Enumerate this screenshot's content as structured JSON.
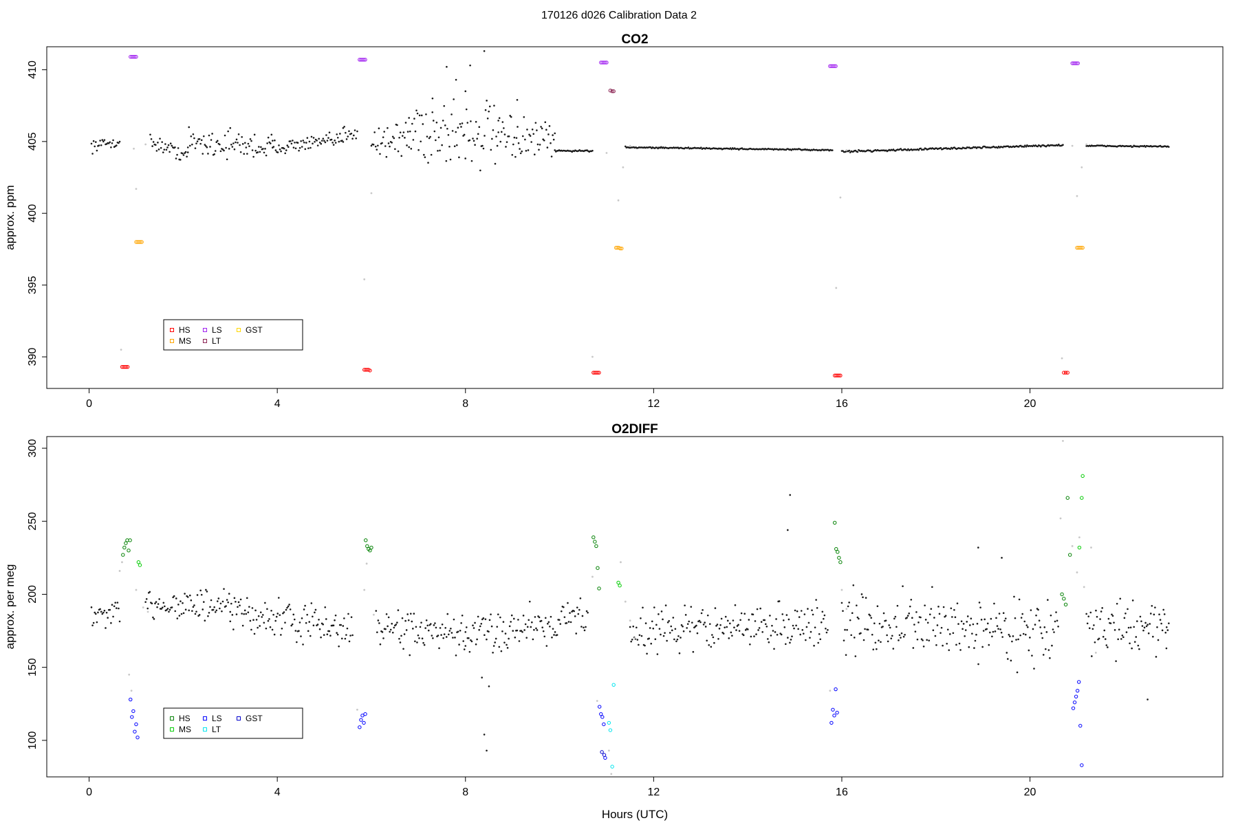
{
  "page_title": "170126   d026   Calibration Data 2",
  "colors": {
    "background_points": "#1a1a1a",
    "flagged_points": "#c8c8c8",
    "HS_co2": "#ff0000",
    "MS_co2": "#ffa500",
    "LS_co2": "#a020f0",
    "LT_co2": "#8b2252",
    "GST_co2": "#ffd700",
    "HS_o2": "#008000",
    "MS_o2": "#00cc00",
    "LS_o2": "#0000ff",
    "LT_o2": "#00e5ee",
    "GST_o2": "#0000cd"
  },
  "chart_data": [
    {
      "type": "scatter",
      "title": "CO2",
      "xlabel": "",
      "ylabel": "approx. ppm",
      "xlim": [
        -0.9,
        24.1
      ],
      "ylim": [
        387.8,
        411.6
      ],
      "xticks": [
        0,
        4,
        8,
        12,
        16,
        20
      ],
      "yticks": [
        390,
        395,
        400,
        405,
        410
      ],
      "grid": false,
      "legend_position": "bottom-left",
      "legend": [
        "HS",
        "MS",
        "LS",
        "LT",
        "GST"
      ],
      "calibration_groups": [
        {
          "name": "HS",
          "points": [
            [
              0.7,
              389.3
            ],
            [
              0.73,
              389.3
            ],
            [
              0.76,
              389.3
            ],
            [
              0.79,
              389.3
            ],
            [
              0.82,
              389.3
            ],
            [
              5.85,
              389.1
            ],
            [
              5.88,
              389.1
            ],
            [
              5.91,
              389.1
            ],
            [
              5.94,
              389.1
            ],
            [
              5.97,
              389.05
            ],
            [
              10.72,
              388.9
            ],
            [
              10.75,
              388.9
            ],
            [
              10.78,
              388.9
            ],
            [
              10.81,
              388.9
            ],
            [
              10.84,
              388.9
            ],
            [
              15.85,
              388.7
            ],
            [
              15.88,
              388.7
            ],
            [
              15.91,
              388.7
            ],
            [
              15.94,
              388.7
            ],
            [
              15.97,
              388.7
            ],
            [
              20.72,
              388.9
            ],
            [
              20.76,
              388.9
            ],
            [
              20.8,
              388.9
            ]
          ]
        },
        {
          "name": "MS",
          "points": [
            [
              1.0,
              398.0
            ],
            [
              1.03,
              398.0
            ],
            [
              1.06,
              398.0
            ],
            [
              1.09,
              398.0
            ],
            [
              1.12,
              398.0
            ],
            [
              11.2,
              397.6
            ],
            [
              11.23,
              397.6
            ],
            [
              11.26,
              397.6
            ],
            [
              11.29,
              397.55
            ],
            [
              11.32,
              397.55
            ],
            [
              21.0,
              397.6
            ],
            [
              21.03,
              397.6
            ],
            [
              21.06,
              397.6
            ],
            [
              21.09,
              397.6
            ],
            [
              21.12,
              397.6
            ]
          ]
        },
        {
          "name": "LS",
          "points": [
            [
              0.88,
              410.9
            ],
            [
              0.91,
              410.9
            ],
            [
              0.94,
              410.9
            ],
            [
              0.97,
              410.9
            ],
            [
              1.0,
              410.9
            ],
            [
              5.75,
              410.7
            ],
            [
              5.78,
              410.7
            ],
            [
              5.81,
              410.7
            ],
            [
              5.84,
              410.7
            ],
            [
              5.87,
              410.7
            ],
            [
              10.88,
              410.5
            ],
            [
              10.91,
              410.5
            ],
            [
              10.94,
              410.5
            ],
            [
              10.97,
              410.5
            ],
            [
              11.0,
              410.5
            ],
            [
              15.75,
              410.25
            ],
            [
              15.78,
              410.25
            ],
            [
              15.81,
              410.25
            ],
            [
              15.84,
              410.25
            ],
            [
              15.87,
              410.25
            ],
            [
              20.9,
              410.45
            ],
            [
              20.93,
              410.45
            ],
            [
              20.96,
              410.45
            ],
            [
              20.99,
              410.45
            ],
            [
              21.02,
              410.45
            ]
          ]
        },
        {
          "name": "LT",
          "points": [
            [
              11.08,
              408.55
            ],
            [
              11.12,
              408.5
            ],
            [
              11.15,
              408.5
            ]
          ]
        }
      ],
      "flagged_points": [
        [
          0.68,
          390.5
        ],
        [
          0.95,
          404.5
        ],
        [
          1.0,
          401.7
        ],
        [
          1.2,
          404.8
        ],
        [
          5.85,
          395.4
        ],
        [
          6.0,
          401.4
        ],
        [
          10.7,
          390.0
        ],
        [
          11.0,
          404.2
        ],
        [
          11.1,
          408.6
        ],
        [
          11.25,
          400.9
        ],
        [
          11.35,
          403.2
        ],
        [
          11.5,
          404.7
        ],
        [
          15.88,
          394.8
        ],
        [
          15.97,
          401.1
        ],
        [
          16.1,
          404.4
        ],
        [
          20.68,
          389.9
        ],
        [
          20.9,
          404.7
        ],
        [
          21.0,
          401.2
        ],
        [
          21.1,
          403.2
        ],
        [
          21.2,
          404.8
        ]
      ],
      "ambient_segments": [
        {
          "x_start": 0.05,
          "x_end": 0.65,
          "base_start": 404.7,
          "base_end": 405.0,
          "spread": 0.5
        },
        {
          "x_start": 1.3,
          "x_end": 2.1,
          "base_start": 405.0,
          "base_end": 404.0,
          "spread": 0.6
        },
        {
          "x_start": 2.1,
          "x_end": 3.9,
          "base_start": 405.0,
          "base_end": 404.6,
          "spread": 1.2
        },
        {
          "x_start": 3.9,
          "x_end": 5.4,
          "base_start": 404.6,
          "base_end": 405.1,
          "spread": 0.6
        },
        {
          "x_start": 5.4,
          "x_end": 5.7,
          "base_start": 405.6,
          "base_end": 405.8,
          "spread": 0.8
        },
        {
          "x_start": 6.0,
          "x_end": 6.8,
          "base_start": 405.0,
          "base_end": 405.2,
          "spread": 1.5
        },
        {
          "x_start": 6.8,
          "x_end": 8.7,
          "base_start": 405.8,
          "base_end": 405.5,
          "spread": 3.2
        },
        {
          "x_start": 8.7,
          "x_end": 9.9,
          "base_start": 405.2,
          "base_end": 405.0,
          "spread": 1.6
        },
        {
          "x_start": 9.9,
          "x_end": 10.7,
          "base_start": 404.35,
          "base_end": 404.35,
          "spread": 0.08
        },
        {
          "x_start": 11.4,
          "x_end": 15.8,
          "base_start": 404.6,
          "base_end": 404.4,
          "spread": 0.06
        },
        {
          "x_start": 16.0,
          "x_end": 20.7,
          "base_start": 404.3,
          "base_end": 404.75,
          "spread": 0.08
        },
        {
          "x_start": 21.2,
          "x_end": 22.95,
          "base_start": 404.7,
          "base_end": 404.65,
          "spread": 0.06
        }
      ],
      "outliers": [
        [
          7.6,
          410.2
        ],
        [
          8.4,
          411.3
        ],
        [
          8.1,
          410.3
        ],
        [
          7.8,
          409.3
        ],
        [
          9.1,
          407.9
        ],
        [
          7.3,
          408.0
        ],
        [
          8.0,
          408.5
        ]
      ]
    },
    {
      "type": "scatter",
      "title": "O2DIFF",
      "xlabel": "Hours (UTC)",
      "ylabel": "approx. per meg",
      "xlim": [
        -0.9,
        24.1
      ],
      "ylim": [
        75,
        308
      ],
      "xticks": [
        0,
        4,
        8,
        12,
        16,
        20
      ],
      "yticks": [
        100,
        150,
        200,
        250,
        300
      ],
      "grid": false,
      "legend_position": "bottom-left",
      "legend": [
        "HS",
        "MS",
        "LS",
        "LT",
        "GST"
      ],
      "calibration_groups": [
        {
          "name": "HS",
          "points": [
            [
              0.72,
              227
            ],
            [
              0.75,
              232
            ],
            [
              0.78,
              235
            ],
            [
              0.81,
              237
            ],
            [
              0.84,
              230
            ],
            [
              0.87,
              237
            ],
            [
              5.88,
              237
            ],
            [
              5.91,
              233
            ],
            [
              5.94,
              231
            ],
            [
              5.97,
              230
            ],
            [
              6.0,
              232
            ],
            [
              10.72,
              239
            ],
            [
              10.75,
              236
            ],
            [
              10.78,
              233
            ],
            [
              10.81,
              218
            ],
            [
              10.84,
              204
            ],
            [
              15.85,
              249
            ],
            [
              15.88,
              231
            ],
            [
              15.91,
              229
            ],
            [
              15.94,
              225
            ],
            [
              15.97,
              222
            ],
            [
              20.68,
              200
            ],
            [
              20.72,
              197
            ],
            [
              20.76,
              193
            ],
            [
              20.8,
              266
            ],
            [
              20.85,
              227
            ]
          ]
        },
        {
          "name": "MS",
          "points": [
            [
              1.05,
              222
            ],
            [
              1.08,
              220
            ],
            [
              11.25,
              208
            ],
            [
              11.28,
              206
            ],
            [
              21.1,
              266
            ],
            [
              21.12,
              281
            ],
            [
              21.05,
              232
            ]
          ]
        },
        {
          "name": "LS",
          "points": [
            [
              0.88,
              128
            ],
            [
              0.91,
              116
            ],
            [
              0.94,
              120
            ],
            [
              0.97,
              106
            ],
            [
              1.0,
              111
            ],
            [
              1.03,
              102
            ],
            [
              5.75,
              109
            ],
            [
              5.78,
              114
            ],
            [
              5.81,
              117
            ],
            [
              5.84,
              112
            ],
            [
              5.87,
              118
            ],
            [
              10.85,
              123
            ],
            [
              10.88,
              118
            ],
            [
              10.91,
              116
            ],
            [
              10.94,
              111
            ],
            [
              10.97,
              88
            ],
            [
              15.78,
              112
            ],
            [
              15.81,
              121
            ],
            [
              15.84,
              117
            ],
            [
              15.87,
              135
            ],
            [
              15.9,
              119
            ],
            [
              20.92,
              122
            ],
            [
              20.95,
              126
            ],
            [
              20.98,
              130
            ],
            [
              21.01,
              134
            ],
            [
              21.04,
              140
            ],
            [
              21.07,
              110
            ],
            [
              21.1,
              83
            ]
          ]
        },
        {
          "name": "LT",
          "points": [
            [
              11.08,
              107
            ],
            [
              11.12,
              82
            ],
            [
              11.15,
              138
            ],
            [
              11.05,
              112
            ]
          ]
        },
        {
          "name": "GST",
          "points": [
            [
              10.9,
              92
            ],
            [
              10.95,
              90
            ]
          ]
        }
      ],
      "flagged_points": [
        [
          0.65,
          216
        ],
        [
          0.7,
          222
        ],
        [
          0.85,
          145
        ],
        [
          0.9,
          134
        ],
        [
          1.0,
          203
        ],
        [
          1.15,
          191
        ],
        [
          1.25,
          188
        ],
        [
          5.7,
          121
        ],
        [
          5.85,
          203
        ],
        [
          5.9,
          221
        ],
        [
          6.05,
          186
        ],
        [
          10.7,
          212
        ],
        [
          10.8,
          127
        ],
        [
          11.05,
          93
        ],
        [
          11.1,
          77
        ],
        [
          11.3,
          222
        ],
        [
          11.4,
          195
        ],
        [
          11.5,
          182
        ],
        [
          11.6,
          170
        ],
        [
          15.75,
          134
        ],
        [
          16.0,
          203
        ],
        [
          16.1,
          190
        ],
        [
          20.65,
          252
        ],
        [
          20.7,
          305
        ],
        [
          20.9,
          233
        ],
        [
          21.0,
          215
        ],
        [
          21.05,
          239
        ],
        [
          21.15,
          205
        ],
        [
          21.3,
          232
        ],
        [
          21.4,
          160
        ]
      ],
      "ambient_segments": [
        {
          "x_start": 0.05,
          "x_end": 0.65,
          "base_start": 185,
          "base_end": 185,
          "spread": 12
        },
        {
          "x_start": 1.2,
          "x_end": 3.0,
          "base_start": 195,
          "base_end": 190,
          "spread": 14
        },
        {
          "x_start": 3.0,
          "x_end": 5.6,
          "base_start": 188,
          "base_end": 175,
          "spread": 16
        },
        {
          "x_start": 6.1,
          "x_end": 8.0,
          "base_start": 178,
          "base_end": 170,
          "spread": 16
        },
        {
          "x_start": 8.0,
          "x_end": 10.6,
          "base_start": 172,
          "base_end": 185,
          "spread": 18
        },
        {
          "x_start": 11.5,
          "x_end": 15.7,
          "base_start": 175,
          "base_end": 180,
          "spread": 18
        },
        {
          "x_start": 16.0,
          "x_end": 20.6,
          "base_start": 180,
          "base_end": 175,
          "spread": 26
        },
        {
          "x_start": 21.2,
          "x_end": 22.95,
          "base_start": 175,
          "base_end": 180,
          "spread": 22
        }
      ],
      "outliers": [
        [
          8.4,
          104
        ],
        [
          8.45,
          93
        ],
        [
          8.35,
          143
        ],
        [
          8.5,
          137
        ],
        [
          14.9,
          268
        ],
        [
          14.85,
          244
        ],
        [
          18.9,
          232
        ],
        [
          19.4,
          225
        ],
        [
          22.5,
          128
        ],
        [
          22.9,
          163
        ]
      ]
    }
  ]
}
